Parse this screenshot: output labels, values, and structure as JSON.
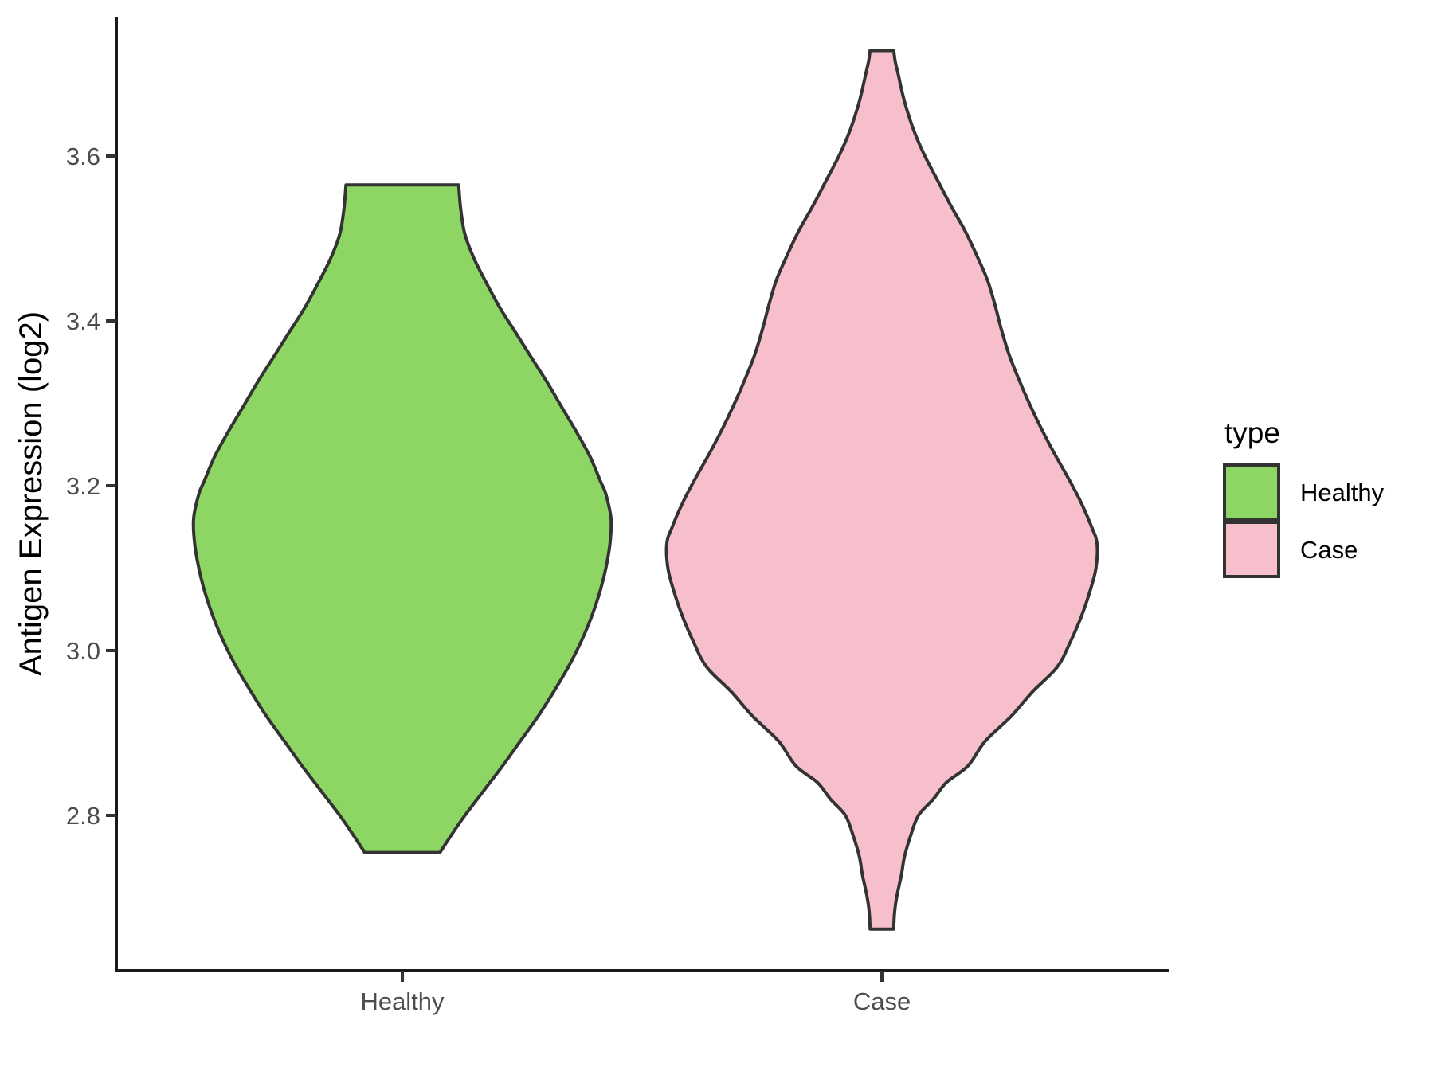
{
  "figure": {
    "background": "#FFFFFF",
    "colors": {
      "axis_line": "#1A1A1A",
      "tick_mark": "#333333",
      "tick_label": "#4D4D4D",
      "axis_title": "#000000",
      "violin_outline": "#333333",
      "legend_text": "#000000",
      "healthy_fill": "#8DD663",
      "case_fill": "#F7BFCB"
    },
    "y_axis": {
      "title": "Antigen Expression (log2)",
      "tick_labels": [
        "3.6",
        "3.4",
        "3.2",
        "3.0",
        "2.8"
      ]
    },
    "x_axis": {
      "labels": [
        "Healthy",
        "Case"
      ]
    },
    "legend": {
      "title": "type",
      "items": [
        {
          "label": "Healthy",
          "color": "#8DD663"
        },
        {
          "label": "Case",
          "color": "#F7BFCB"
        }
      ]
    }
  },
  "chart_data": {
    "type": "violin",
    "title": "",
    "xlabel": "",
    "ylabel": "Antigen Expression (log2)",
    "categories": [
      "Healthy",
      "Case"
    ],
    "yticks": [
      3.6,
      3.4,
      3.2,
      3.0,
      2.8
    ],
    "ylim": [
      2.61,
      3.78
    ],
    "grid": false,
    "legend_position": "right",
    "legend_title": "type",
    "series": [
      {
        "name": "Healthy",
        "fill": "#8DD663",
        "outline": "#333333",
        "y_min": 2.755,
        "y_max": 3.565,
        "y_peak": 3.16,
        "trimmed_flat_top": true,
        "trimmed_flat_bottom": true,
        "density_profile": [
          [
            3.565,
            0.27
          ],
          [
            3.535,
            0.28
          ],
          [
            3.505,
            0.3
          ],
          [
            3.475,
            0.345
          ],
          [
            3.445,
            0.405
          ],
          [
            3.415,
            0.47
          ],
          [
            3.385,
            0.545
          ],
          [
            3.355,
            0.62
          ],
          [
            3.325,
            0.695
          ],
          [
            3.295,
            0.765
          ],
          [
            3.265,
            0.835
          ],
          [
            3.235,
            0.9
          ],
          [
            3.205,
            0.95
          ],
          [
            3.19,
            0.975
          ],
          [
            3.16,
            1.0
          ],
          [
            3.13,
            0.995
          ],
          [
            3.1,
            0.975
          ],
          [
            3.07,
            0.945
          ],
          [
            3.04,
            0.905
          ],
          [
            3.01,
            0.855
          ],
          [
            2.98,
            0.795
          ],
          [
            2.95,
            0.725
          ],
          [
            2.92,
            0.65
          ],
          [
            2.89,
            0.565
          ],
          [
            2.86,
            0.48
          ],
          [
            2.83,
            0.39
          ],
          [
            2.8,
            0.3
          ],
          [
            2.78,
            0.245
          ],
          [
            2.755,
            0.18
          ]
        ]
      },
      {
        "name": "Case",
        "fill": "#F7BFCB",
        "outline": "#333333",
        "y_min": 2.662,
        "y_max": 3.728,
        "y_peak": 3.13,
        "trimmed_flat_top": true,
        "trimmed_flat_bottom": true,
        "density_profile": [
          [
            3.728,
            0.055
          ],
          [
            3.715,
            0.062
          ],
          [
            3.7,
            0.075
          ],
          [
            3.68,
            0.092
          ],
          [
            3.66,
            0.112
          ],
          [
            3.63,
            0.15
          ],
          [
            3.6,
            0.2
          ],
          [
            3.57,
            0.26
          ],
          [
            3.54,
            0.32
          ],
          [
            3.51,
            0.385
          ],
          [
            3.48,
            0.44
          ],
          [
            3.45,
            0.49
          ],
          [
            3.42,
            0.525
          ],
          [
            3.39,
            0.555
          ],
          [
            3.36,
            0.59
          ],
          [
            3.33,
            0.635
          ],
          [
            3.3,
            0.685
          ],
          [
            3.27,
            0.74
          ],
          [
            3.24,
            0.8
          ],
          [
            3.21,
            0.865
          ],
          [
            3.18,
            0.925
          ],
          [
            3.15,
            0.975
          ],
          [
            3.13,
            1.0
          ],
          [
            3.1,
            0.995
          ],
          [
            3.07,
            0.965
          ],
          [
            3.04,
            0.925
          ],
          [
            3.01,
            0.875
          ],
          [
            2.98,
            0.815
          ],
          [
            2.95,
            0.7
          ],
          [
            2.92,
            0.6
          ],
          [
            2.89,
            0.48
          ],
          [
            2.86,
            0.4
          ],
          [
            2.84,
            0.3
          ],
          [
            2.82,
            0.24
          ],
          [
            2.8,
            0.17
          ],
          [
            2.775,
            0.133
          ],
          [
            2.75,
            0.105
          ],
          [
            2.727,
            0.09
          ],
          [
            2.7,
            0.068
          ],
          [
            2.68,
            0.058
          ],
          [
            2.662,
            0.055
          ]
        ]
      }
    ]
  }
}
